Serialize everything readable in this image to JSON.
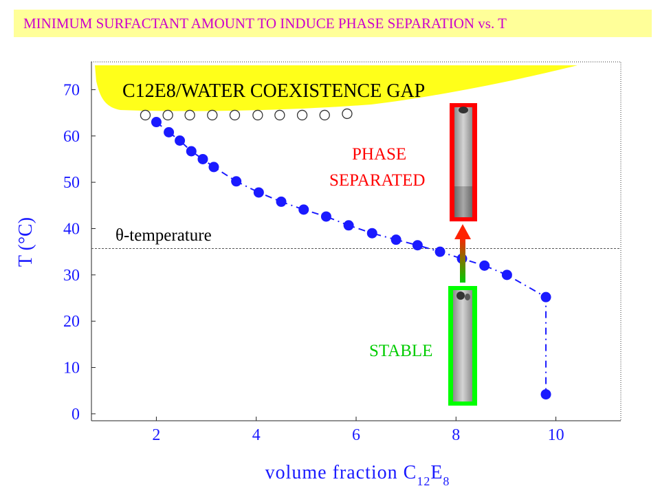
{
  "title": "MINIMUM  SURFACTANT AMOUNT TO INDUCE PHASE SEPARATION vs. T",
  "colors": {
    "title_text": "#cc00cc",
    "title_bg": "#ffff99",
    "axis": "#1a1aff",
    "points": "#1a1aff",
    "gap": "#ffff1a",
    "phase_separated": "#ff0000",
    "stable": "#00cc00"
  },
  "chart_data": {
    "type": "scatter",
    "title": "",
    "xlabel": "volume fraction C12E8",
    "ylabel": "T (°C)",
    "xlim": [
      0.7,
      11.3
    ],
    "ylim": [
      -1.5,
      76
    ],
    "x_ticks": [
      "2",
      "4",
      "6",
      "8",
      "10"
    ],
    "y_ticks": [
      "0",
      "10",
      "20",
      "30",
      "40",
      "50",
      "60",
      "70"
    ],
    "grid": false,
    "series": [
      {
        "marker": "filled-circle",
        "x": [
          2.0,
          2.25,
          2.47,
          2.7,
          2.93,
          3.15,
          3.6,
          4.05,
          4.5,
          4.95,
          5.4,
          5.85,
          6.32,
          6.8,
          7.23,
          7.68,
          8.12,
          8.57,
          9.02,
          9.8,
          9.8
        ],
        "y": [
          63.0,
          60.8,
          59.0,
          56.7,
          55.0,
          53.3,
          50.2,
          47.8,
          45.8,
          44.1,
          42.6,
          40.7,
          39.0,
          37.6,
          36.4,
          35.0,
          33.5,
          32.0,
          30.0,
          25.2,
          4.2
        ]
      },
      {
        "marker": "open-circle",
        "x": [
          1.78,
          2.23,
          2.67,
          3.12,
          3.57,
          4.03,
          4.47,
          4.92,
          5.37,
          5.82
        ],
        "y": [
          64.5,
          64.5,
          64.5,
          64.5,
          64.5,
          64.5,
          64.5,
          64.5,
          64.5,
          64.8
        ]
      }
    ],
    "annotations": {
      "gap": "C12E8/WATER COEXISTENCE GAP",
      "theta": "θ-temperature",
      "theta_value": 35.7,
      "phase_separated_line1": "PHASE",
      "phase_separated_line2": "SEPARATED",
      "stable": "STABLE"
    }
  }
}
